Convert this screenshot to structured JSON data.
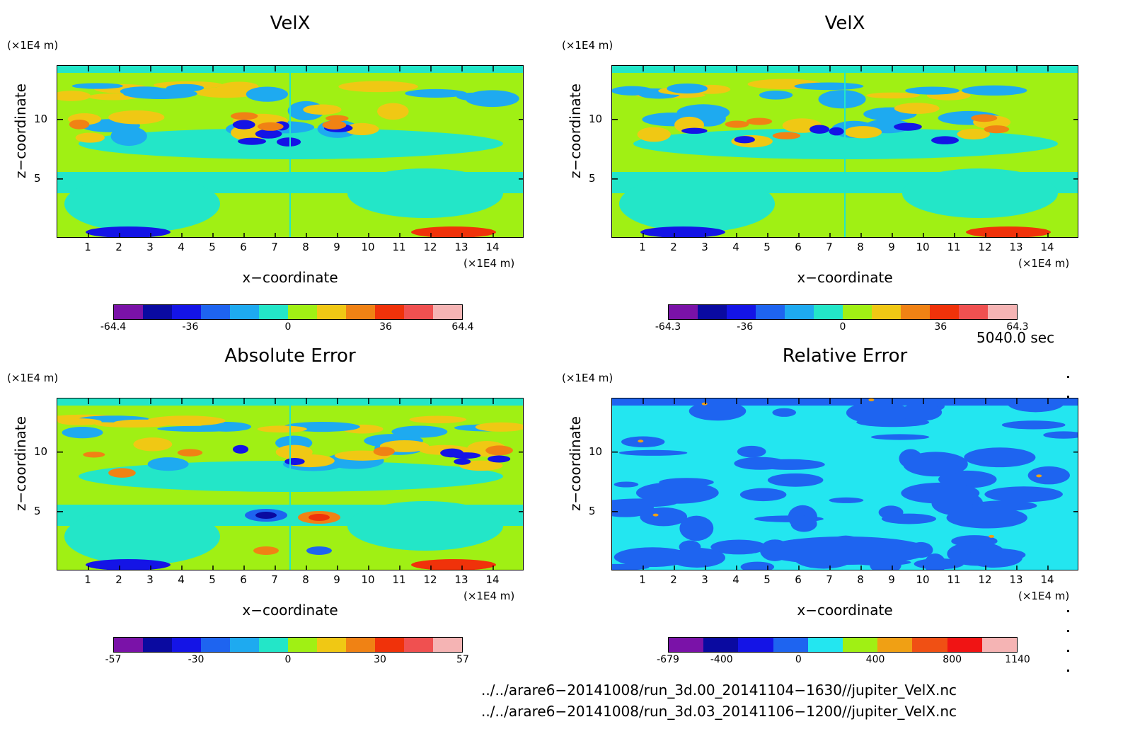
{
  "panels": [
    {
      "title": "VelX",
      "cbar_labels": [
        "-64.4",
        "-36",
        "0",
        "36",
        "64.4"
      ],
      "cbar_colors": [
        "#7a12a8",
        "#0a0aa0",
        "#1414e6",
        "#1e64f0",
        "#1eaaf0",
        "#23e6c8",
        "#a0f014",
        "#f0c814",
        "#f08214",
        "#f0320a",
        "#f05050",
        "#f5b4b4"
      ],
      "field_type": "velocity"
    },
    {
      "title": "VelX",
      "cbar_labels": [
        "-64.3",
        "-36",
        "0",
        "36",
        "64.3"
      ],
      "cbar_colors": [
        "#7a12a8",
        "#0a0aa0",
        "#1414e6",
        "#1e64f0",
        "#1eaaf0",
        "#23e6c8",
        "#a0f014",
        "#f0c814",
        "#f08214",
        "#f0320a",
        "#f05050",
        "#f5b4b4"
      ],
      "field_type": "velocity"
    },
    {
      "title": "Absolute Error",
      "cbar_labels": [
        "-57",
        "-30",
        "0",
        "30",
        "57"
      ],
      "cbar_colors": [
        "#7a12a8",
        "#0a0aa0",
        "#1414e6",
        "#1e64f0",
        "#1eaaf0",
        "#23e6c8",
        "#a0f014",
        "#f0c814",
        "#f08214",
        "#f0320a",
        "#f05050",
        "#f5b4b4"
      ],
      "field_type": "error"
    },
    {
      "title": "Relative Error",
      "cbar_labels": [
        "-679",
        "-400",
        "0",
        "400",
        "800",
        "1140"
      ],
      "cbar_colors": [
        "#7a12a8",
        "#0a0aa0",
        "#1414e6",
        "#1e64f0",
        "#23e6f0",
        "#a0f014",
        "#f0a014",
        "#f05014",
        "#f01414",
        "#f5b4b4"
      ],
      "field_type": "relative"
    }
  ],
  "axes": {
    "xlabel": "x−coordinate",
    "ylabel": "z−coordinate",
    "x_unit": "(×1E4 m)",
    "z_unit": "(×1E4 m)",
    "x_ticks": [
      "1",
      "2",
      "3",
      "4",
      "5",
      "6",
      "7",
      "8",
      "9",
      "10",
      "11",
      "12",
      "13",
      "14"
    ],
    "z_ticks": [
      "5",
      "10"
    ]
  },
  "chart_data": [
    {
      "type": "heatmap",
      "title": "VelX",
      "xlabel": "x−coordinate",
      "ylabel": "z−coordinate",
      "xlim": [
        0,
        15
      ],
      "ylim": [
        0,
        14.5
      ],
      "x_ticks": [
        1,
        2,
        3,
        4,
        5,
        6,
        7,
        8,
        9,
        10,
        11,
        12,
        13,
        14
      ],
      "z_ticks": [
        5,
        10
      ],
      "color_range": [
        -64.4,
        64.4
      ],
      "colorbar_ticks": [
        -64.4,
        -36,
        0,
        36,
        64.4
      ]
    },
    {
      "type": "heatmap",
      "title": "VelX",
      "xlabel": "x−coordinate",
      "ylabel": "z−coordinate",
      "xlim": [
        0,
        15
      ],
      "ylim": [
        0,
        14.5
      ],
      "x_ticks": [
        1,
        2,
        3,
        4,
        5,
        6,
        7,
        8,
        9,
        10,
        11,
        12,
        13,
        14
      ],
      "z_ticks": [
        5,
        10
      ],
      "color_range": [
        -64.3,
        64.3
      ],
      "colorbar_ticks": [
        -64.3,
        -36,
        0,
        36,
        64.3
      ]
    },
    {
      "type": "heatmap",
      "title": "Absolute Error",
      "xlabel": "x−coordinate",
      "ylabel": "z−coordinate",
      "xlim": [
        0,
        15
      ],
      "ylim": [
        0,
        14.5
      ],
      "x_ticks": [
        1,
        2,
        3,
        4,
        5,
        6,
        7,
        8,
        9,
        10,
        11,
        12,
        13,
        14
      ],
      "z_ticks": [
        5,
        10
      ],
      "color_range": [
        -57,
        57
      ],
      "colorbar_ticks": [
        -57,
        -30,
        0,
        30,
        57
      ]
    },
    {
      "type": "heatmap",
      "title": "Relative Error",
      "xlabel": "x−coordinate",
      "ylabel": "z−coordinate",
      "xlim": [
        0,
        15
      ],
      "ylim": [
        0,
        14.5
      ],
      "x_ticks": [
        1,
        2,
        3,
        4,
        5,
        6,
        7,
        8,
        9,
        10,
        11,
        12,
        13,
        14
      ],
      "z_ticks": [
        5,
        10
      ],
      "color_range": [
        -679,
        1140
      ],
      "colorbar_ticks": [
        -679,
        -400,
        0,
        400,
        800,
        1140
      ]
    }
  ],
  "time_label": "5040.0 sec",
  "files": [
    "../../arare6−20141008/run_3d.00_20141104−1630//jupiter_VelX.nc",
    "../../arare6−20141008/run_3d.03_20141106−1200//jupiter_VelX.nc"
  ]
}
